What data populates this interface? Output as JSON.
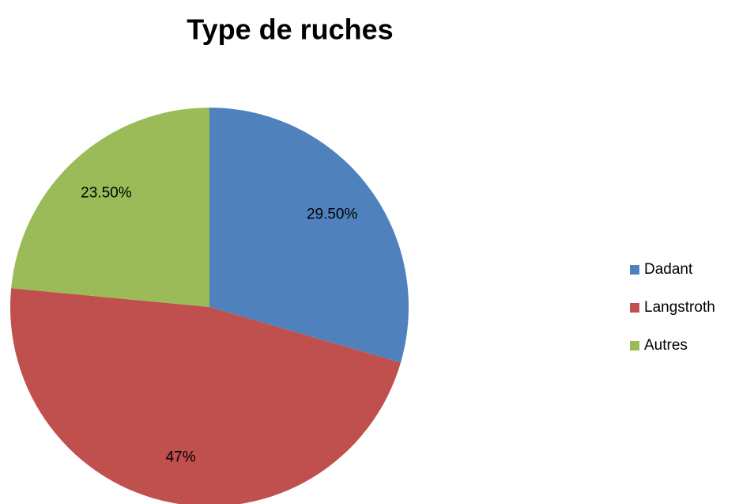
{
  "chart_data": {
    "type": "pie",
    "title": "Type de ruches",
    "categories": [
      "Dadant",
      "Langstroth",
      "Autres"
    ],
    "values": [
      29.5,
      47,
      23.5
    ],
    "value_labels": [
      "29.50%",
      "47%",
      "23.50%"
    ],
    "colors": [
      "#4f81bd",
      "#c0504d",
      "#9bbb59"
    ],
    "legend": "right"
  }
}
